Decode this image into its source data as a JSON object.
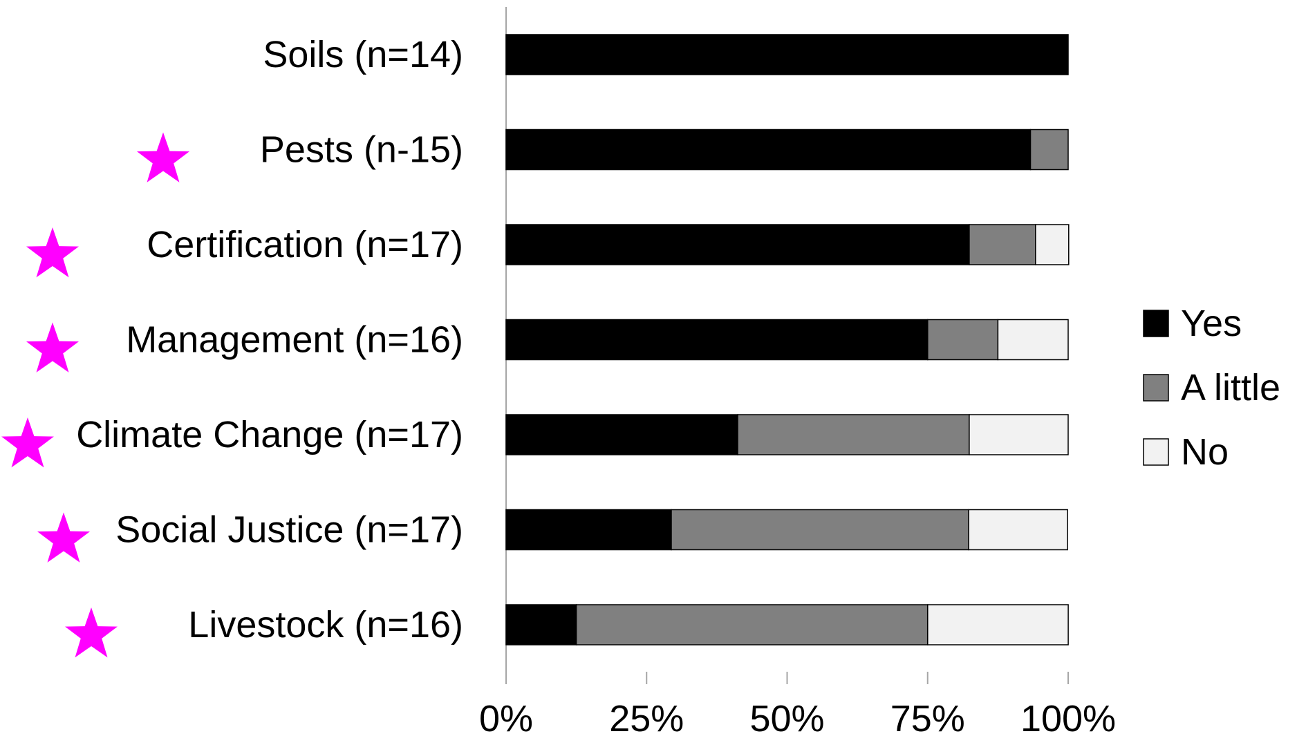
{
  "chart_data": {
    "type": "bar",
    "orientation": "horizontal",
    "stacked": "percent",
    "categories": [
      "Soils (n=14)",
      "Pests (n-15)",
      "Certification (n=17)",
      "Management (n=16)",
      "Climate Change (n=17)",
      "Social Justice (n=17)",
      "Livestock (n=16)"
    ],
    "starred": [
      false,
      true,
      true,
      true,
      true,
      true,
      true
    ],
    "series": [
      {
        "name": "Yes",
        "color": "#000000",
        "values": [
          100,
          93.3,
          82.4,
          75.0,
          41.2,
          29.4,
          12.5
        ]
      },
      {
        "name": "A little",
        "color": "#808080",
        "values": [
          0,
          6.7,
          11.8,
          12.5,
          41.2,
          52.9,
          62.5
        ]
      },
      {
        "name": "No",
        "color": "#f2f2f2",
        "values": [
          0,
          0,
          5.9,
          12.5,
          17.6,
          17.6,
          25.0
        ]
      }
    ],
    "xlim": [
      0,
      100
    ],
    "xticks": [
      "0%",
      "25%",
      "50%",
      "75%",
      "100%"
    ],
    "star_color": "#ff00ff",
    "legend_position": "right",
    "grid": false,
    "title": "",
    "xlabel": "",
    "ylabel": ""
  }
}
